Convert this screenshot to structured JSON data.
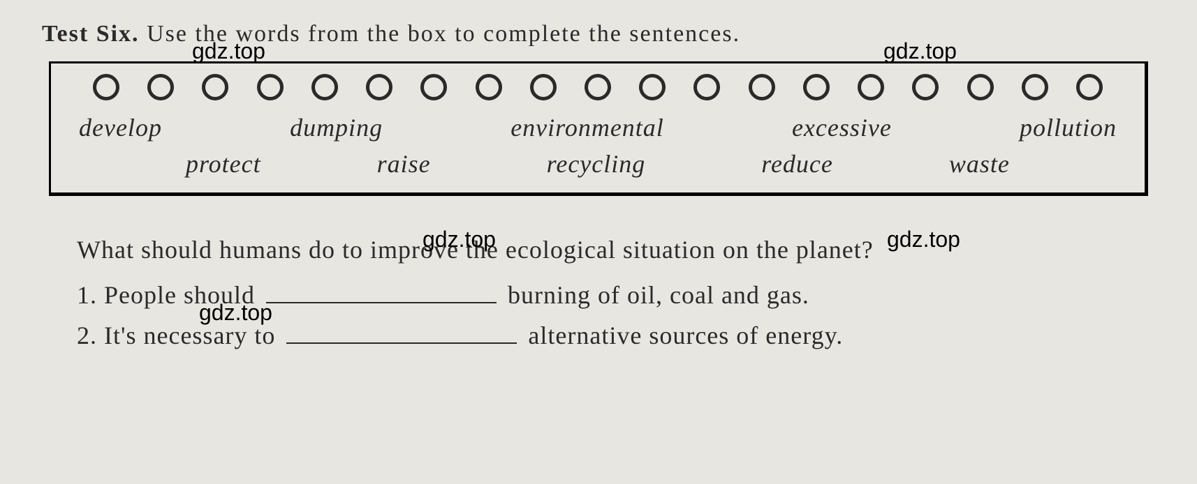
{
  "header": {
    "label": "Test Six.",
    "instruction": "Use the words from the box to complete the sentences."
  },
  "watermark": "gdz.top",
  "wordbox": {
    "row1": {
      "w1": "develop",
      "w2": "dumping",
      "w3": "environmental",
      "w4": "excessive",
      "w5": "pollution"
    },
    "row2": {
      "w1": "protect",
      "w2": "raise",
      "w3": "recycling",
      "w4": "reduce",
      "w5": "waste"
    }
  },
  "question": "What should humans do to improve the ecological situation on the planet?",
  "sentences": {
    "s1": {
      "num": "1.",
      "before": "People should",
      "after": "burning of oil, coal and gas."
    },
    "s2": {
      "num": "2.",
      "before": "It's necessary to",
      "after": "alternative sources of energy."
    }
  },
  "colors": {
    "background": "#e8e6e0",
    "text": "#2a2a2a",
    "border": "#000000"
  }
}
